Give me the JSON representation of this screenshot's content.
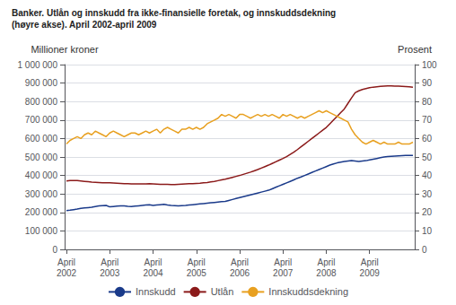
{
  "chart_data": {
    "type": "line",
    "title": "Banker. Utlån og innskudd fra ikke-finansielle foretak, og innskuddsdekning",
    "subtitle": "(høyre akse). April 2002-april 2009",
    "ylabel": "Millioner kroner",
    "y2label": "Prosent",
    "categories": [
      "April\n2002",
      null,
      null,
      null,
      null,
      null,
      null,
      null,
      null,
      null,
      null,
      null,
      "April\n2003",
      null,
      null,
      null,
      null,
      null,
      null,
      null,
      null,
      null,
      null,
      null,
      "April\n2004",
      null,
      null,
      null,
      null,
      null,
      null,
      null,
      null,
      null,
      null,
      null,
      "April\n2005",
      null,
      null,
      null,
      null,
      null,
      null,
      null,
      null,
      null,
      null,
      null,
      "April\n2006",
      null,
      null,
      null,
      null,
      null,
      null,
      null,
      null,
      null,
      null,
      null,
      "April\n2007",
      null,
      null,
      null,
      null,
      null,
      null,
      null,
      null,
      null,
      null,
      null,
      "April\n2008",
      null,
      null,
      null,
      null,
      null,
      null,
      null,
      null,
      null,
      null,
      null,
      "April\n2009",
      null,
      null,
      null,
      null,
      null,
      null,
      null,
      null,
      null,
      null,
      null,
      null
    ],
    "series": [
      {
        "name": "Innskudd",
        "color": "#1a3a8a",
        "values": [
          210000,
          212000,
          215000,
          218000,
          222000,
          224000,
          226000,
          228000,
          232000,
          235000,
          237000,
          238000,
          230000,
          232000,
          234000,
          236000,
          235000,
          233000,
          232000,
          234000,
          236000,
          238000,
          240000,
          242000,
          238000,
          240000,
          242000,
          244000,
          240000,
          238000,
          237000,
          236000,
          237000,
          238000,
          240000,
          242000,
          244000,
          246000,
          248000,
          250000,
          252000,
          254000,
          256000,
          258000,
          260000,
          265000,
          270000,
          275000,
          280000,
          285000,
          290000,
          295000,
          300000,
          305000,
          310000,
          315000,
          320000,
          328000,
          336000,
          344000,
          352000,
          360000,
          368000,
          376000,
          385000,
          392000,
          400000,
          408000,
          416000,
          424000,
          432000,
          440000,
          448000,
          456000,
          462000,
          468000,
          472000,
          476000,
          478000,
          480000,
          478000,
          476000,
          478000,
          480000,
          484000,
          488000,
          492000,
          496000,
          500000,
          502000,
          504000,
          505000,
          506000,
          507000,
          508000,
          508000,
          509000
        ]
      },
      {
        "name": "Utlån",
        "color": "#8b1a1a",
        "values": [
          370000,
          372000,
          373000,
          372000,
          370000,
          368000,
          366000,
          364000,
          363000,
          362000,
          361000,
          360000,
          360000,
          359000,
          358000,
          357000,
          356000,
          355000,
          354000,
          354000,
          354000,
          354000,
          354000,
          355000,
          354000,
          353000,
          352000,
          352000,
          352000,
          351000,
          351000,
          352000,
          353000,
          354000,
          355000,
          356000,
          357000,
          358000,
          360000,
          362000,
          365000,
          368000,
          372000,
          376000,
          380000,
          385000,
          390000,
          395000,
          400000,
          406000,
          412000,
          418000,
          425000,
          432000,
          440000,
          448000,
          456000,
          465000,
          474000,
          483000,
          492000,
          502000,
          514000,
          526000,
          540000,
          555000,
          570000,
          585000,
          600000,
          615000,
          630000,
          645000,
          660000,
          680000,
          700000,
          720000,
          740000,
          760000,
          790000,
          820000,
          848000,
          858000,
          865000,
          870000,
          875000,
          878000,
          880000,
          882000,
          884000,
          885000,
          885000,
          884000,
          883000,
          882000,
          881000,
          880000,
          878000
        ]
      },
      {
        "name": "Innskuddsdekning",
        "color": "#e8a020",
        "axis": "y2",
        "values": [
          57,
          59,
          60,
          61,
          60,
          62,
          63,
          62,
          64,
          63,
          62,
          61,
          63,
          64,
          63,
          62,
          61,
          62,
          63,
          63,
          62,
          63,
          64,
          63,
          64,
          65,
          63,
          65,
          66,
          65,
          64,
          63,
          65,
          65,
          66,
          65,
          66,
          65,
          66,
          68,
          69,
          70,
          71,
          73,
          72,
          73,
          72,
          71,
          73,
          73,
          72,
          71,
          72,
          73,
          72,
          73,
          72,
          73,
          72,
          71,
          73,
          72,
          73,
          72,
          71,
          72,
          71,
          72,
          73,
          74,
          75,
          74,
          75,
          74,
          73,
          72,
          71,
          70,
          69,
          65,
          62,
          60,
          58,
          57,
          58,
          59,
          58,
          57,
          58,
          57,
          57,
          57,
          58,
          57,
          57,
          57,
          58
        ]
      }
    ],
    "ylim": [
      0,
      1000000
    ],
    "yticks": [
      0,
      {
        "value": 100000,
        "label": "100 000"
      },
      {
        "value": 200000,
        "label": "200 000"
      },
      {
        "value": 300000,
        "label": "300 000"
      },
      {
        "value": 400000,
        "label": "400 000"
      },
      {
        "value": 500000,
        "label": "500 000"
      },
      {
        "value": 600000,
        "label": "600 000"
      },
      {
        "value": 700000,
        "label": "700 000"
      },
      {
        "value": 800000,
        "label": "800 000"
      },
      {
        "value": 900000,
        "label": "900 000"
      },
      {
        "value": 1000000,
        "label": "1 000 000"
      }
    ],
    "y2lim": [
      0,
      100
    ],
    "y2ticks": [
      0,
      10,
      20,
      30,
      40,
      50,
      60,
      70,
      80,
      90,
      100
    ],
    "grid": true,
    "legend": "bottom"
  }
}
